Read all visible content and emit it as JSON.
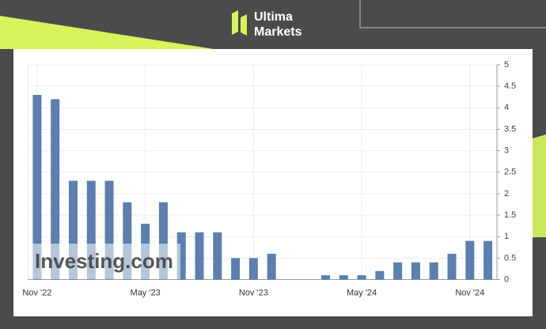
{
  "brand": [
    "Ultima",
    "Markets"
  ],
  "chart_data": {
    "type": "bar",
    "watermark": "Investing.com",
    "categories": [
      "Nov '22",
      null,
      null,
      null,
      null,
      null,
      "May '23",
      null,
      null,
      null,
      null,
      null,
      "Nov '23",
      null,
      null,
      null,
      null,
      null,
      "May '24",
      null,
      null,
      null,
      null,
      null,
      "Nov '24",
      null
    ],
    "values": [
      4.3,
      4.2,
      2.3,
      2.3,
      2.3,
      1.8,
      1.3,
      1.8,
      1.1,
      1.1,
      1.1,
      0.5,
      0.5,
      0.6,
      0,
      0,
      0.1,
      0.1,
      0.1,
      0.2,
      0.4,
      0.4,
      0.4,
      0.6,
      0.9,
      0.9
    ],
    "color": "#5b7fae",
    "ylim": [
      0,
      5
    ],
    "yticks": [
      0,
      0.5,
      1,
      1.5,
      2,
      2.5,
      3,
      3.5,
      4,
      4.5,
      5
    ],
    "grid": true,
    "y_axis_side": "right"
  }
}
